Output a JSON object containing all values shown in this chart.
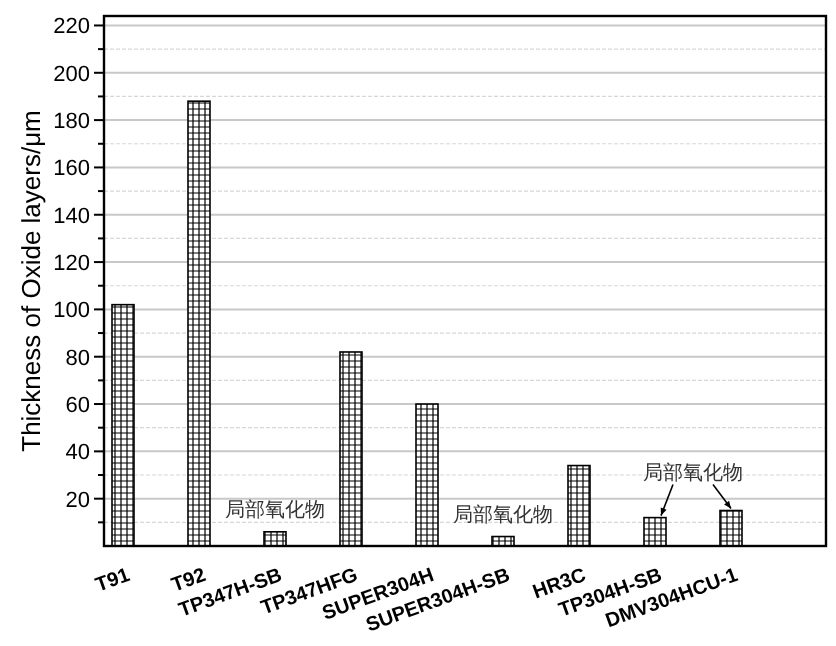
{
  "chart_data": {
    "type": "bar",
    "ylabel": "Thickness of Oxide layers/μm",
    "categories": [
      "T91",
      "T92",
      "TP347H-SB",
      "TP347HFG",
      "SUPER304H",
      "SUPER304H-SB",
      "HR3C",
      "TP304H-SB",
      "DMV304HCU-1"
    ],
    "values": [
      102,
      188,
      6,
      82,
      60,
      4,
      34,
      12,
      15
    ],
    "color": "#000000",
    "ylim": [
      0,
      224
    ],
    "yticks": [
      {
        "value": 10,
        "label": null
      },
      20,
      {
        "value": 30,
        "label": null
      },
      40,
      {
        "value": 50,
        "label": null
      },
      60,
      {
        "value": 70,
        "label": null
      },
      80,
      {
        "value": 90,
        "label": null
      },
      100,
      {
        "value": 110,
        "label": null
      },
      120,
      {
        "value": 130,
        "label": null
      },
      140,
      {
        "value": 150,
        "label": null
      },
      160,
      {
        "value": 170,
        "label": null
      },
      180,
      {
        "value": 190,
        "label": null
      },
      200,
      {
        "value": 210,
        "label": null
      },
      220
    ],
    "grid": "y",
    "annotations": [
      {
        "text": "局部氧化物",
        "x": "TP347H-SB",
        "y": 6
      },
      {
        "text": "局部氧化物",
        "x": "SUPER304H-SB",
        "y": 4
      },
      "局部氧化物"
    ]
  }
}
